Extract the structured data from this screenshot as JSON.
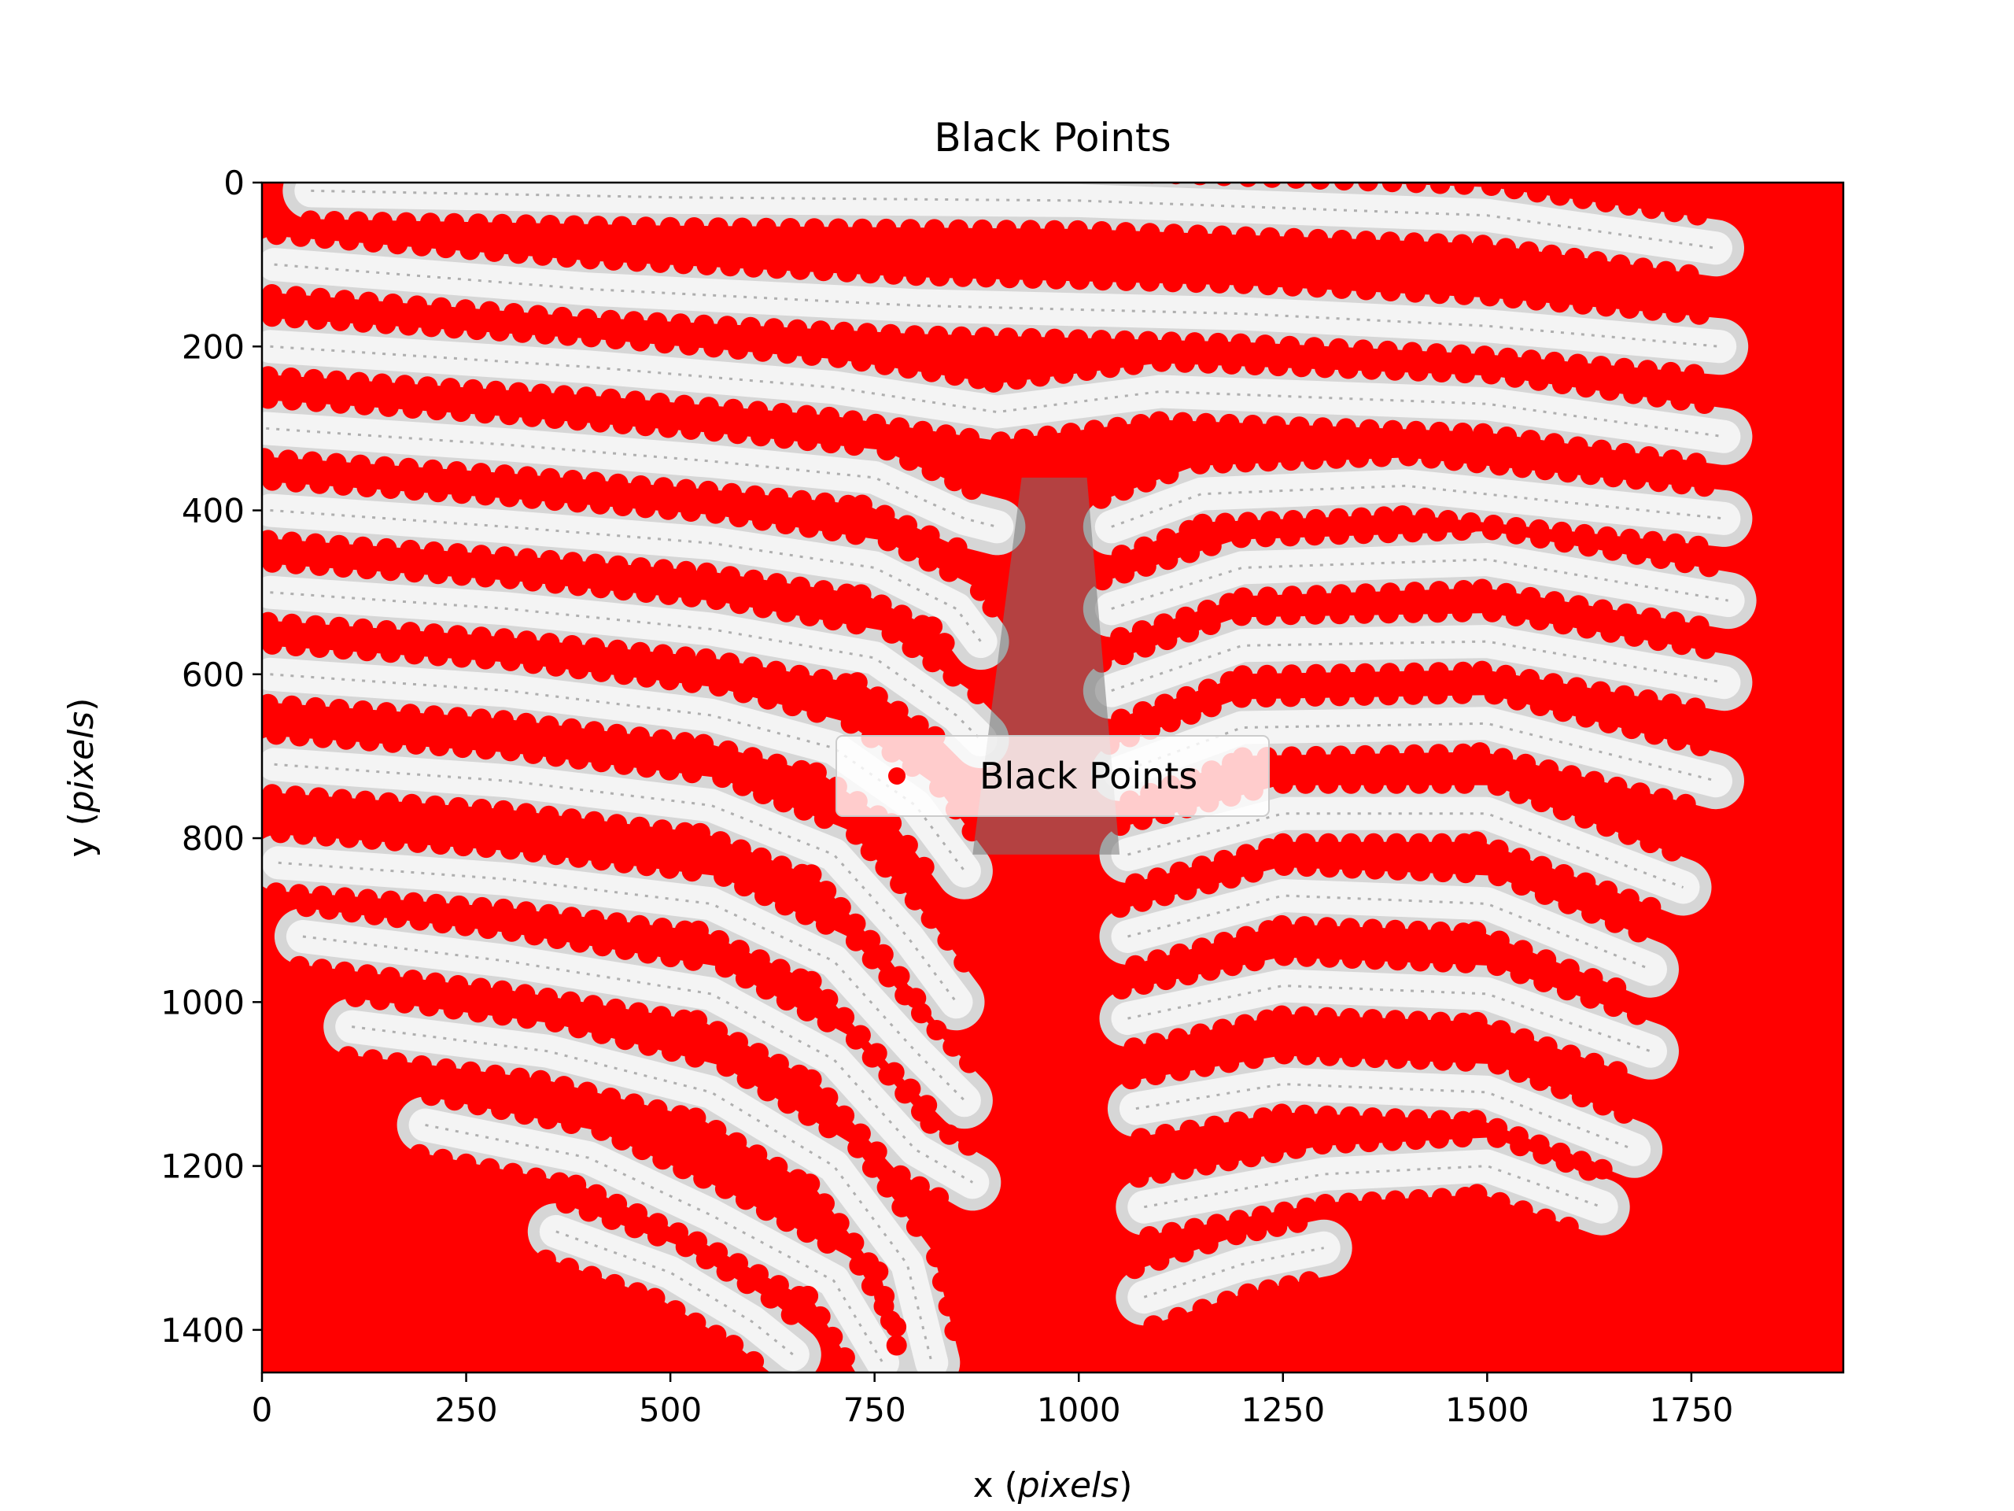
{
  "chart_data": {
    "type": "scatter",
    "title": "Black Points",
    "xlabel": "x",
    "xlabel_unit": "pixels",
    "ylabel": "y",
    "ylabel_unit": "pixels",
    "xlim": [
      0,
      1936
    ],
    "ylim": [
      1452,
      0
    ],
    "y_inverted": true,
    "grid": false,
    "legend_position": "center",
    "x_ticks": [
      0,
      250,
      500,
      750,
      1000,
      1250,
      1500,
      1750
    ],
    "y_ticks": [
      0,
      200,
      400,
      600,
      800,
      1000,
      1200,
      1400
    ],
    "x_tick_labels": [
      "0",
      "250",
      "500",
      "750",
      "1000",
      "1250",
      "1500",
      "1750"
    ],
    "y_tick_labels": [
      "0",
      "200",
      "400",
      "600",
      "800",
      "1000",
      "1200",
      "1400"
    ],
    "series": [
      {
        "name": "Black Points",
        "color": "#ff0000",
        "marker": "circle"
      }
    ],
    "background_image": "grayscale fingerprint-like striped texture fully overlaid by red point markers; white stripes show only between marker bands",
    "stripes": [
      {
        "side": "full",
        "points": [
          [
            60,
            10
          ],
          [
            500,
            18
          ],
          [
            1000,
            22
          ],
          [
            1500,
            40
          ],
          [
            1780,
            80
          ]
        ]
      },
      {
        "side": "full",
        "points": [
          [
            15,
            100
          ],
          [
            400,
            130
          ],
          [
            800,
            150
          ],
          [
            1200,
            160
          ],
          [
            1500,
            175
          ],
          [
            1785,
            200
          ]
        ]
      },
      {
        "side": "full",
        "points": [
          [
            10,
            200
          ],
          [
            400,
            225
          ],
          [
            700,
            250
          ],
          [
            900,
            280
          ],
          [
            1100,
            255
          ],
          [
            1500,
            270
          ],
          [
            1790,
            310
          ]
        ]
      },
      {
        "side": "left",
        "points": [
          [
            5,
            300
          ],
          [
            300,
            320
          ],
          [
            550,
            340
          ],
          [
            750,
            360
          ],
          [
            860,
            410
          ],
          [
            900,
            420
          ]
        ]
      },
      {
        "side": "right",
        "points": [
          [
            1040,
            420
          ],
          [
            1150,
            380
          ],
          [
            1400,
            370
          ],
          [
            1790,
            410
          ]
        ]
      },
      {
        "side": "left",
        "points": [
          [
            10,
            400
          ],
          [
            300,
            420
          ],
          [
            550,
            440
          ],
          [
            750,
            470
          ],
          [
            850,
            520
          ],
          [
            880,
            560
          ]
        ]
      },
      {
        "side": "right",
        "points": [
          [
            1040,
            520
          ],
          [
            1200,
            470
          ],
          [
            1500,
            460
          ],
          [
            1795,
            510
          ]
        ]
      },
      {
        "side": "left",
        "points": [
          [
            10,
            500
          ],
          [
            300,
            520
          ],
          [
            550,
            545
          ],
          [
            750,
            580
          ],
          [
            850,
            650
          ],
          [
            880,
            680
          ]
        ]
      },
      {
        "side": "right",
        "points": [
          [
            1040,
            620
          ],
          [
            1200,
            565
          ],
          [
            1500,
            560
          ],
          [
            1790,
            610
          ]
        ]
      },
      {
        "side": "left",
        "points": [
          [
            10,
            600
          ],
          [
            300,
            620
          ],
          [
            550,
            650
          ],
          [
            700,
            690
          ],
          [
            800,
            760
          ],
          [
            860,
            840
          ]
        ]
      },
      {
        "side": "right",
        "points": [
          [
            1050,
            720
          ],
          [
            1200,
            665
          ],
          [
            1500,
            660
          ],
          [
            1780,
            730
          ]
        ]
      },
      {
        "side": "left",
        "points": [
          [
            15,
            710
          ],
          [
            300,
            730
          ],
          [
            550,
            760
          ],
          [
            700,
            820
          ],
          [
            790,
            920
          ],
          [
            850,
            1000
          ]
        ]
      },
      {
        "side": "right",
        "points": [
          [
            1060,
            820
          ],
          [
            1250,
            770
          ],
          [
            1500,
            770
          ],
          [
            1740,
            860
          ]
        ]
      },
      {
        "side": "left",
        "points": [
          [
            20,
            830
          ],
          [
            300,
            850
          ],
          [
            550,
            880
          ],
          [
            700,
            950
          ],
          [
            800,
            1060
          ],
          [
            860,
            1120
          ]
        ]
      },
      {
        "side": "right",
        "points": [
          [
            1060,
            920
          ],
          [
            1250,
            870
          ],
          [
            1500,
            880
          ],
          [
            1700,
            960
          ]
        ]
      },
      {
        "side": "left",
        "points": [
          [
            50,
            920
          ],
          [
            300,
            950
          ],
          [
            550,
            990
          ],
          [
            700,
            1070
          ],
          [
            800,
            1180
          ],
          [
            870,
            1220
          ]
        ]
      },
      {
        "side": "right",
        "points": [
          [
            1060,
            1020
          ],
          [
            1250,
            980
          ],
          [
            1500,
            990
          ],
          [
            1700,
            1060
          ]
        ]
      },
      {
        "side": "left",
        "points": [
          [
            110,
            1030
          ],
          [
            350,
            1060
          ],
          [
            550,
            1110
          ],
          [
            700,
            1200
          ],
          [
            790,
            1320
          ],
          [
            820,
            1440
          ]
        ]
      },
      {
        "side": "right",
        "points": [
          [
            1070,
            1130
          ],
          [
            1250,
            1100
          ],
          [
            1500,
            1110
          ],
          [
            1680,
            1180
          ]
        ]
      },
      {
        "side": "left",
        "points": [
          [
            200,
            1150
          ],
          [
            400,
            1190
          ],
          [
            550,
            1260
          ],
          [
            700,
            1340
          ],
          [
            760,
            1440
          ]
        ]
      },
      {
        "side": "right",
        "points": [
          [
            1080,
            1250
          ],
          [
            1300,
            1210
          ],
          [
            1500,
            1200
          ],
          [
            1640,
            1250
          ]
        ]
      },
      {
        "side": "left",
        "points": [
          [
            360,
            1280
          ],
          [
            500,
            1330
          ],
          [
            600,
            1390
          ],
          [
            650,
            1430
          ]
        ]
      },
      {
        "side": "right",
        "points": [
          [
            1080,
            1360
          ],
          [
            1200,
            1320
          ],
          [
            1300,
            1300
          ]
        ]
      }
    ]
  }
}
